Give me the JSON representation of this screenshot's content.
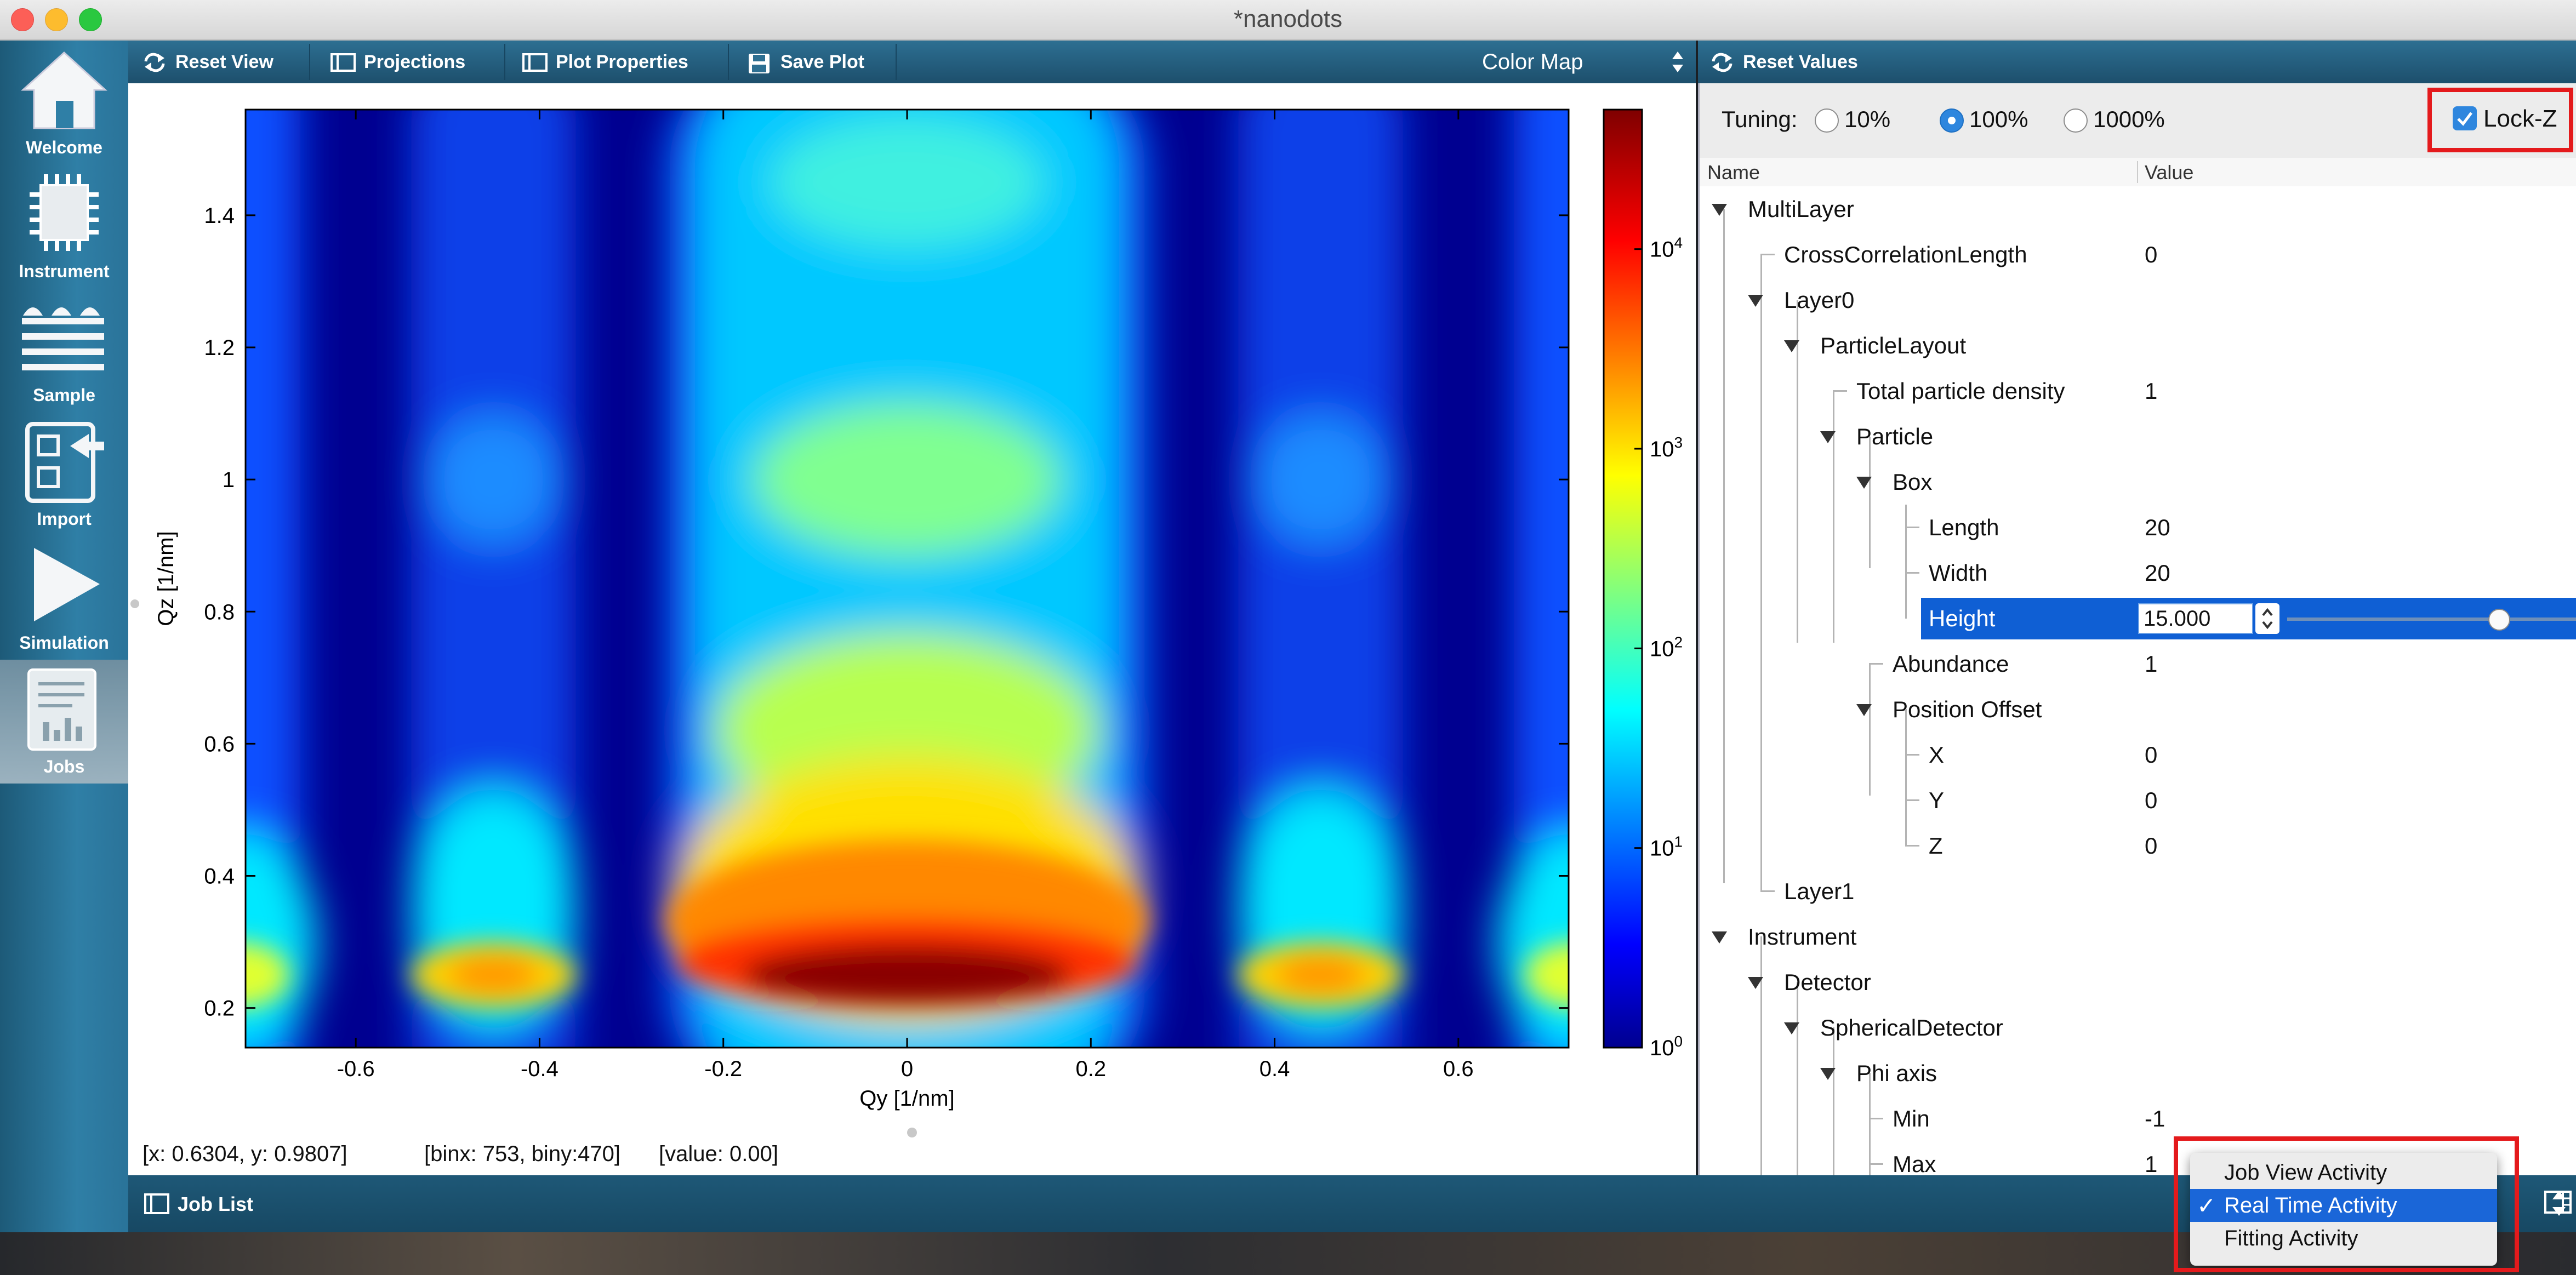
{
  "window": {
    "title": "*nanodots"
  },
  "sidebar": {
    "items": [
      {
        "label": "Welcome",
        "icon": "home-icon"
      },
      {
        "label": "Instrument",
        "icon": "chip-icon"
      },
      {
        "label": "Sample",
        "icon": "layers-icon"
      },
      {
        "label": "Import",
        "icon": "import-icon"
      },
      {
        "label": "Simulation",
        "icon": "play-icon"
      },
      {
        "label": "Jobs",
        "icon": "jobs-icon",
        "active": true
      }
    ]
  },
  "toolbar": {
    "reset_view": "Reset View",
    "projections": "Projections",
    "plot_properties": "Plot Properties",
    "save_plot": "Save Plot",
    "view_select": "Color Map"
  },
  "right_toolbar": {
    "reset_values": "Reset Values"
  },
  "tuning": {
    "label": "Tuning:",
    "options": [
      "10%",
      "100%",
      "1000%"
    ],
    "selected": "100%",
    "lock_z_label": "Lock-Z",
    "lock_z_checked": true
  },
  "tree": {
    "headers": {
      "name": "Name",
      "value": "Value"
    },
    "rows": [
      {
        "name": "MultiLayer",
        "value": ""
      },
      {
        "name": "CrossCorrelationLength",
        "value": "0"
      },
      {
        "name": "Layer0",
        "value": ""
      },
      {
        "name": "ParticleLayout",
        "value": ""
      },
      {
        "name": "Total particle density",
        "value": "1"
      },
      {
        "name": "Particle",
        "value": ""
      },
      {
        "name": "Box",
        "value": ""
      },
      {
        "name": "Length",
        "value": "20"
      },
      {
        "name": "Width",
        "value": "20"
      },
      {
        "name": "Height",
        "value": "15.000"
      },
      {
        "name": "Abundance",
        "value": "1"
      },
      {
        "name": "Position Offset",
        "value": ""
      },
      {
        "name": "X",
        "value": "0"
      },
      {
        "name": "Y",
        "value": "0"
      },
      {
        "name": "Z",
        "value": "0"
      },
      {
        "name": "Layer1",
        "value": ""
      },
      {
        "name": "Instrument",
        "value": ""
      },
      {
        "name": "Detector",
        "value": ""
      },
      {
        "name": "SphericalDetector",
        "value": ""
      },
      {
        "name": "Phi axis",
        "value": ""
      },
      {
        "name": "Min",
        "value": "-1"
      },
      {
        "name": "Max",
        "value": "1"
      }
    ],
    "height_slider_fraction": 0.73
  },
  "status": {
    "coords": "[x: 0.6304, y: 0.9807]",
    "bins": "[binx: 753, biny:470]",
    "value": "[value: 0.00]"
  },
  "bottom": {
    "job_list": "Job List",
    "activity_menu": {
      "options": [
        "Job View Activity",
        "Real Time Activity",
        "Fitting Activity"
      ],
      "selected": "Real Time Activity",
      "check": "✓"
    }
  },
  "chart_data": {
    "type": "heatmap",
    "title": "",
    "xlabel": "Qy [1/nm]",
    "ylabel": "Qz [1/nm]",
    "xlim": [
      -0.72,
      0.72
    ],
    "ylim": [
      0.14,
      1.56
    ],
    "xticks": [
      "-0.6",
      "-0.4",
      "-0.2",
      "0",
      "0.2",
      "0.4",
      "0.6"
    ],
    "xtick_values": [
      -0.6,
      -0.4,
      -0.2,
      0,
      0.2,
      0.4,
      0.6
    ],
    "yticks": [
      "0.2",
      "0.4",
      "0.6",
      "0.8",
      "1",
      "1.2",
      "1.4"
    ],
    "ytick_values": [
      0.2,
      0.4,
      0.6,
      0.8,
      1.0,
      1.2,
      1.4
    ],
    "colorbar": {
      "scale": "log",
      "range": [
        1,
        50000
      ],
      "ticks": [
        {
          "base": "10",
          "exp": "0",
          "value": 1
        },
        {
          "base": "10",
          "exp": "1",
          "value": 10
        },
        {
          "base": "10",
          "exp": "2",
          "value": 100
        },
        {
          "base": "10",
          "exp": "3",
          "value": 1000
        },
        {
          "base": "10",
          "exp": "4",
          "value": 10000
        }
      ],
      "colormap": "jet"
    },
    "features": {
      "columns_qy": [
        -0.6,
        -0.45,
        0,
        0.45,
        0.6
      ],
      "peak": {
        "qy": 0,
        "qz": 0.25,
        "value": 40000
      },
      "yoneda_band_qz": [
        0.22,
        0.29
      ]
    }
  }
}
